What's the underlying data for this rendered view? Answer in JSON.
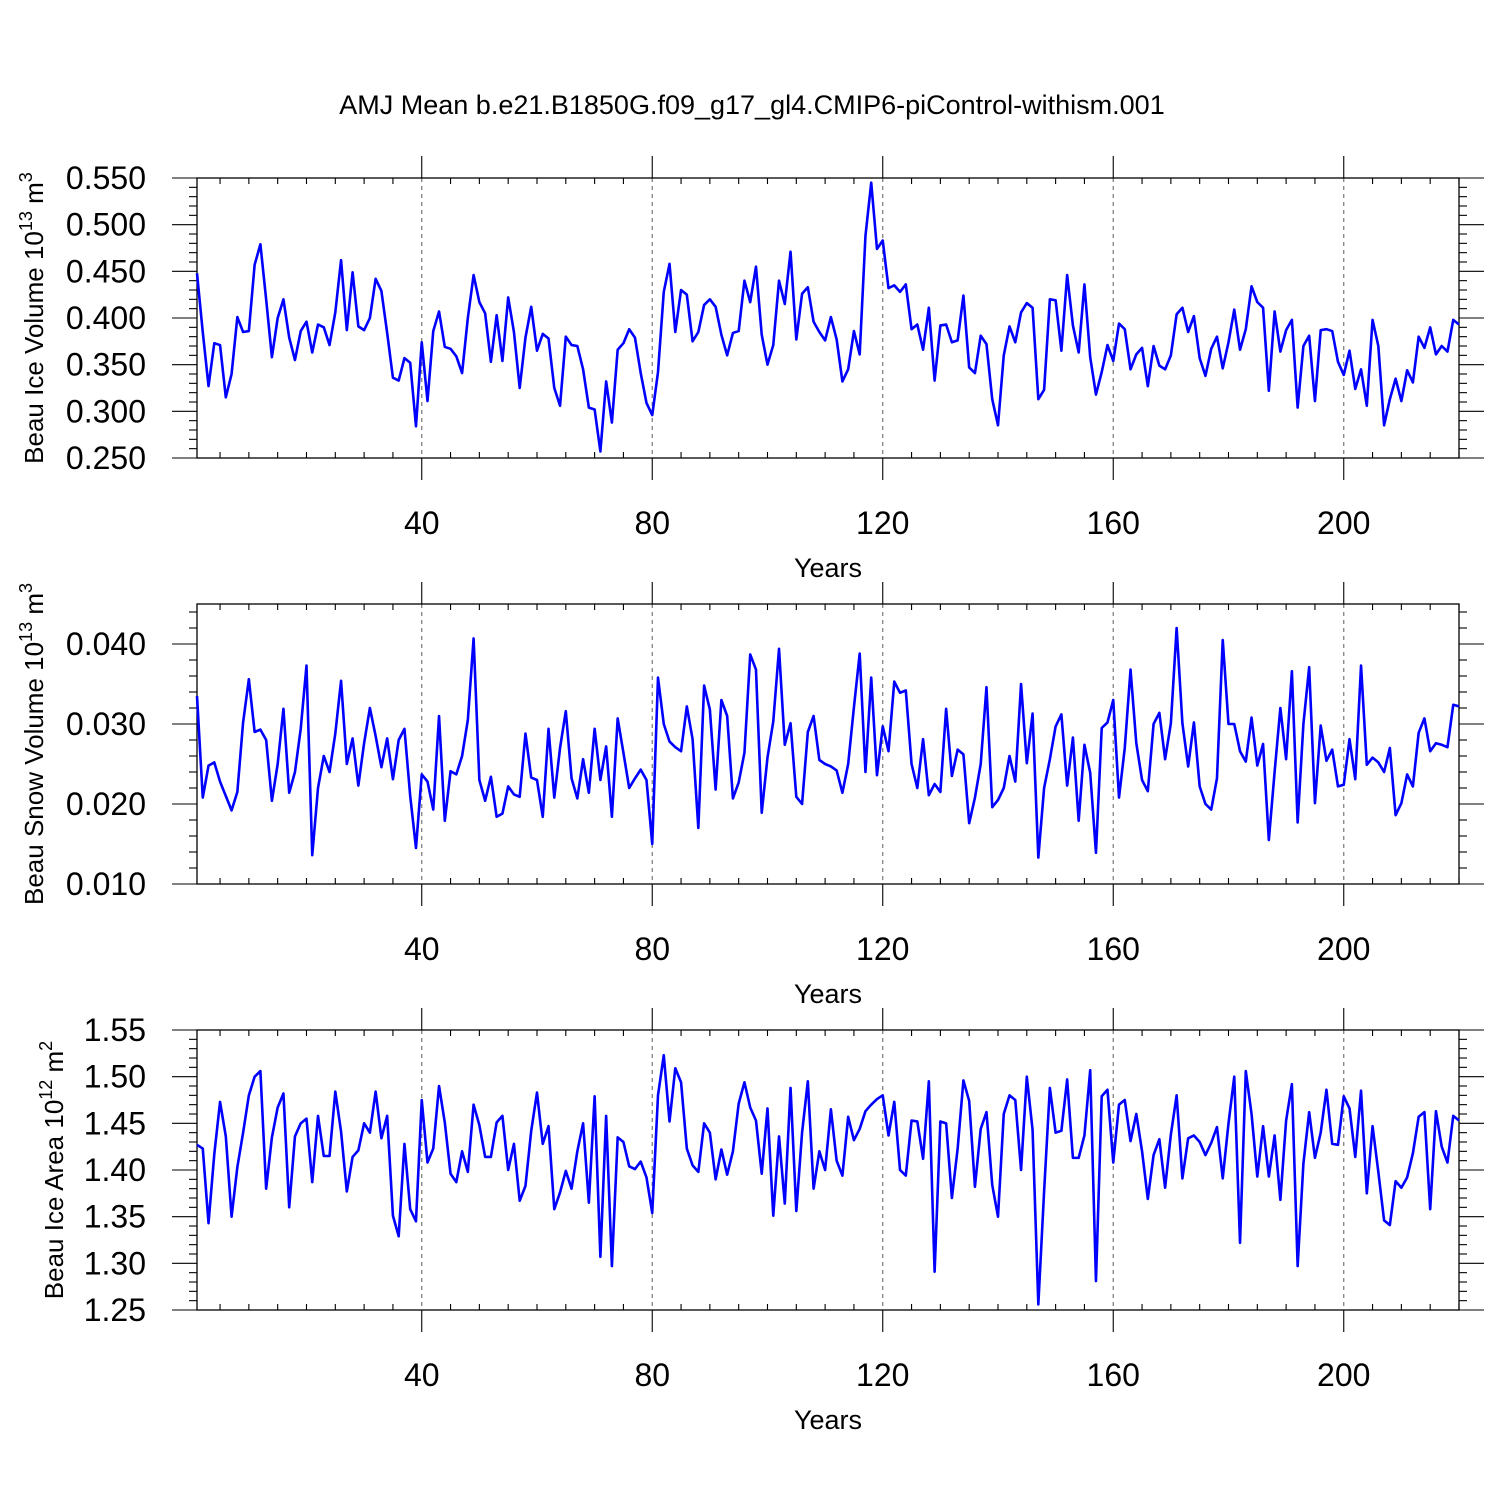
{
  "title": "AMJ Mean b.e21.B1850G.f09_g17_gl4.CMIP6-piControl-withism.001",
  "colors": {
    "series": "#0000ff",
    "axes": "#000000",
    "grid": "#777777"
  },
  "chart_data": [
    {
      "type": "line",
      "title": "AMJ Mean b.e21.B1850G.f09_g17_gl4.CMIP6-piControl-withism.001",
      "xlabel": "Years",
      "ylabel": {
        "text": "Beau Ice Volume 10",
        "sup": "13",
        "unit": " m",
        "unit_sup": "3"
      },
      "xlim": [
        1,
        220
      ],
      "ylim": [
        0.25,
        0.55
      ],
      "xticks": [
        40,
        80,
        120,
        160,
        200
      ],
      "xtick_labels": [
        "40",
        "80",
        "120",
        "160",
        "200"
      ],
      "yticks": [
        0.25,
        0.3,
        0.35,
        0.4,
        0.45,
        0.5,
        0.55
      ],
      "ytick_labels": [
        "0.250",
        "0.300",
        "0.350",
        "0.400",
        "0.450",
        "0.500",
        "0.550"
      ],
      "grid": "vertical dashed at major x ticks",
      "series": [
        {
          "x_start": 1,
          "values": [
            0.448,
            0.385,
            0.327,
            0.373,
            0.371,
            0.315,
            0.34,
            0.401,
            0.385,
            0.386,
            0.457,
            0.479,
            0.42,
            0.358,
            0.4,
            0.42,
            0.379,
            0.355,
            0.386,
            0.396,
            0.363,
            0.393,
            0.39,
            0.371,
            0.406,
            0.462,
            0.387,
            0.449,
            0.391,
            0.387,
            0.4,
            0.442,
            0.429,
            0.384,
            0.336,
            0.333,
            0.357,
            0.352,
            0.284,
            0.374,
            0.311,
            0.386,
            0.407,
            0.369,
            0.367,
            0.359,
            0.341,
            0.4,
            0.446,
            0.417,
            0.405,
            0.353,
            0.403,
            0.354,
            0.422,
            0.385,
            0.325,
            0.379,
            0.412,
            0.365,
            0.383,
            0.378,
            0.325,
            0.306,
            0.38,
            0.371,
            0.37,
            0.345,
            0.304,
            0.302,
            0.257,
            0.332,
            0.288,
            0.366,
            0.373,
            0.388,
            0.379,
            0.341,
            0.309,
            0.296,
            0.342,
            0.428,
            0.458,
            0.385,
            0.43,
            0.425,
            0.375,
            0.385,
            0.414,
            0.42,
            0.412,
            0.382,
            0.36,
            0.384,
            0.386,
            0.44,
            0.417,
            0.455,
            0.382,
            0.35,
            0.371,
            0.44,
            0.415,
            0.471,
            0.377,
            0.426,
            0.433,
            0.396,
            0.385,
            0.376,
            0.401,
            0.377,
            0.332,
            0.345,
            0.386,
            0.361,
            0.488,
            0.545,
            0.474,
            0.483,
            0.432,
            0.435,
            0.428,
            0.436,
            0.388,
            0.393,
            0.366,
            0.411,
            0.333,
            0.392,
            0.393,
            0.374,
            0.376,
            0.424,
            0.347,
            0.341,
            0.381,
            0.372,
            0.313,
            0.285,
            0.36,
            0.391,
            0.374,
            0.406,
            0.416,
            0.411,
            0.313,
            0.323,
            0.42,
            0.419,
            0.365,
            0.446,
            0.392,
            0.363,
            0.436,
            0.358,
            0.318,
            0.342,
            0.371,
            0.354,
            0.394,
            0.388,
            0.345,
            0.361,
            0.368,
            0.327,
            0.37,
            0.349,
            0.345,
            0.36,
            0.404,
            0.411,
            0.385,
            0.402,
            0.357,
            0.338,
            0.367,
            0.38,
            0.346,
            0.374,
            0.409,
            0.366,
            0.388,
            0.434,
            0.417,
            0.411,
            0.322,
            0.407,
            0.364,
            0.387,
            0.398,
            0.304,
            0.37,
            0.381,
            0.311,
            0.387,
            0.388,
            0.386,
            0.353,
            0.339,
            0.365,
            0.324,
            0.345,
            0.306,
            0.398,
            0.37,
            0.285,
            0.313,
            0.335,
            0.311,
            0.344,
            0.331,
            0.38,
            0.368,
            0.39,
            0.361,
            0.37,
            0.364,
            0.398,
            0.393
          ]
        }
      ]
    },
    {
      "type": "line",
      "xlabel": "Years",
      "ylabel": {
        "text": "Beau Snow Volume 10",
        "sup": "13",
        "unit": " m",
        "unit_sup": "3"
      },
      "xlim": [
        1,
        220
      ],
      "ylim": [
        0.01,
        0.045
      ],
      "xticks": [
        40,
        80,
        120,
        160,
        200
      ],
      "xtick_labels": [
        "40",
        "80",
        "120",
        "160",
        "200"
      ],
      "yticks": [
        0.01,
        0.02,
        0.03,
        0.04
      ],
      "ytick_labels": [
        "0.010",
        "0.020",
        "0.030",
        "0.040"
      ],
      "grid": "vertical dashed at major x ticks",
      "series": [
        {
          "x_start": 1,
          "values": [
            0.0335,
            0.0208,
            0.0248,
            0.0252,
            0.0228,
            0.021,
            0.0192,
            0.0215,
            0.0302,
            0.0356,
            0.029,
            0.0293,
            0.028,
            0.0204,
            0.025,
            0.0319,
            0.0214,
            0.024,
            0.0294,
            0.0373,
            0.0136,
            0.022,
            0.026,
            0.024,
            0.0288,
            0.0354,
            0.025,
            0.0282,
            0.0223,
            0.0276,
            0.032,
            0.0285,
            0.0246,
            0.0282,
            0.0231,
            0.028,
            0.0294,
            0.021,
            0.0145,
            0.0237,
            0.0228,
            0.0193,
            0.031,
            0.0179,
            0.0241,
            0.0237,
            0.026,
            0.0305,
            0.0407,
            0.023,
            0.0204,
            0.0234,
            0.0184,
            0.0188,
            0.0222,
            0.0212,
            0.0209,
            0.0288,
            0.0233,
            0.023,
            0.0184,
            0.0294,
            0.0208,
            0.027,
            0.0316,
            0.0232,
            0.0207,
            0.0256,
            0.0214,
            0.0294,
            0.023,
            0.0272,
            0.0184,
            0.0307,
            0.0264,
            0.022,
            0.0232,
            0.0243,
            0.023,
            0.015,
            0.0358,
            0.03,
            0.0278,
            0.0271,
            0.0266,
            0.0322,
            0.0281,
            0.017,
            0.0348,
            0.0318,
            0.0218,
            0.033,
            0.031,
            0.0207,
            0.0227,
            0.0264,
            0.0387,
            0.0368,
            0.0189,
            0.0258,
            0.0303,
            0.0394,
            0.0274,
            0.0301,
            0.0209,
            0.02,
            0.029,
            0.031,
            0.0255,
            0.025,
            0.0247,
            0.0242,
            0.0214,
            0.025,
            0.0321,
            0.0388,
            0.024,
            0.0358,
            0.0236,
            0.0297,
            0.0266,
            0.0353,
            0.0339,
            0.0342,
            0.025,
            0.022,
            0.0281,
            0.0211,
            0.0225,
            0.0215,
            0.0319,
            0.0235,
            0.0268,
            0.0262,
            0.0176,
            0.0208,
            0.025,
            0.0346,
            0.0196,
            0.0205,
            0.022,
            0.026,
            0.0228,
            0.035,
            0.0251,
            0.0313,
            0.0133,
            0.022,
            0.0256,
            0.0297,
            0.0312,
            0.0223,
            0.0283,
            0.0179,
            0.0274,
            0.0239,
            0.0139,
            0.0295,
            0.0302,
            0.033,
            0.0208,
            0.027,
            0.0368,
            0.0276,
            0.023,
            0.0216,
            0.03,
            0.0314,
            0.0256,
            0.0301,
            0.042,
            0.0301,
            0.0247,
            0.0302,
            0.0222,
            0.02,
            0.0193,
            0.0232,
            0.0405,
            0.03,
            0.03,
            0.0266,
            0.0253,
            0.0308,
            0.0248,
            0.0275,
            0.0155,
            0.024,
            0.032,
            0.0256,
            0.0366,
            0.0177,
            0.03,
            0.0371,
            0.0201,
            0.0298,
            0.0254,
            0.0268,
            0.0222,
            0.0224,
            0.0281,
            0.0231,
            0.0373,
            0.0249,
            0.0258,
            0.0252,
            0.024,
            0.027,
            0.0186,
            0.0201,
            0.0237,
            0.0222,
            0.0289,
            0.0307,
            0.0266,
            0.0276,
            0.0274,
            0.0271,
            0.0324,
            0.0322
          ]
        }
      ]
    },
    {
      "type": "line",
      "xlabel": "Years",
      "ylabel": {
        "text": "Beau Ice Area 10",
        "sup": "12",
        "unit": " m",
        "unit_sup": "2"
      },
      "xlim": [
        1,
        220
      ],
      "ylim": [
        1.25,
        1.55
      ],
      "xticks": [
        40,
        80,
        120,
        160,
        200
      ],
      "xtick_labels": [
        "40",
        "80",
        "120",
        "160",
        "200"
      ],
      "yticks": [
        1.25,
        1.3,
        1.35,
        1.4,
        1.45,
        1.5,
        1.55
      ],
      "ytick_labels": [
        "1.25",
        "1.30",
        "1.35",
        "1.40",
        "1.45",
        "1.50",
        "1.55"
      ],
      "grid": "vertical dashed at major x ticks",
      "series": [
        {
          "x_start": 1,
          "values": [
            1.427,
            1.423,
            1.343,
            1.417,
            1.473,
            1.436,
            1.35,
            1.403,
            1.44,
            1.48,
            1.5,
            1.506,
            1.38,
            1.435,
            1.467,
            1.482,
            1.36,
            1.436,
            1.45,
            1.455,
            1.387,
            1.458,
            1.415,
            1.415,
            1.484,
            1.441,
            1.377,
            1.414,
            1.421,
            1.45,
            1.44,
            1.484,
            1.434,
            1.458,
            1.351,
            1.329,
            1.428,
            1.358,
            1.345,
            1.475,
            1.408,
            1.423,
            1.49,
            1.451,
            1.396,
            1.387,
            1.42,
            1.398,
            1.47,
            1.448,
            1.414,
            1.414,
            1.451,
            1.458,
            1.4,
            1.428,
            1.367,
            1.383,
            1.442,
            1.483,
            1.428,
            1.447,
            1.358,
            1.376,
            1.399,
            1.38,
            1.42,
            1.45,
            1.365,
            1.479,
            1.307,
            1.458,
            1.297,
            1.435,
            1.43,
            1.404,
            1.401,
            1.409,
            1.392,
            1.354,
            1.48,
            1.523,
            1.452,
            1.509,
            1.494,
            1.423,
            1.405,
            1.398,
            1.45,
            1.44,
            1.39,
            1.422,
            1.395,
            1.42,
            1.471,
            1.494,
            1.467,
            1.453,
            1.396,
            1.466,
            1.351,
            1.436,
            1.364,
            1.488,
            1.356,
            1.44,
            1.495,
            1.38,
            1.42,
            1.4,
            1.465,
            1.41,
            1.394,
            1.457,
            1.432,
            1.444,
            1.463,
            1.47,
            1.476,
            1.48,
            1.437,
            1.473,
            1.4,
            1.394,
            1.453,
            1.452,
            1.412,
            1.495,
            1.291,
            1.452,
            1.45,
            1.37,
            1.423,
            1.496,
            1.474,
            1.382,
            1.444,
            1.462,
            1.384,
            1.35,
            1.46,
            1.48,
            1.475,
            1.4,
            1.5,
            1.443,
            1.256,
            1.377,
            1.488,
            1.44,
            1.442,
            1.497,
            1.413,
            1.413,
            1.437,
            1.507,
            1.281,
            1.479,
            1.486,
            1.408,
            1.47,
            1.475,
            1.431,
            1.46,
            1.42,
            1.369,
            1.416,
            1.433,
            1.381,
            1.438,
            1.48,
            1.391,
            1.434,
            1.437,
            1.43,
            1.416,
            1.429,
            1.446,
            1.391,
            1.45,
            1.5,
            1.322,
            1.506,
            1.46,
            1.393,
            1.447,
            1.393,
            1.437,
            1.368,
            1.453,
            1.492,
            1.297,
            1.407,
            1.462,
            1.413,
            1.44,
            1.486,
            1.428,
            1.427,
            1.479,
            1.466,
            1.414,
            1.485,
            1.375,
            1.447,
            1.398,
            1.346,
            1.341,
            1.388,
            1.381,
            1.392,
            1.418,
            1.457,
            1.462,
            1.358,
            1.463,
            1.425,
            1.408,
            1.458,
            1.453
          ]
        }
      ]
    }
  ]
}
